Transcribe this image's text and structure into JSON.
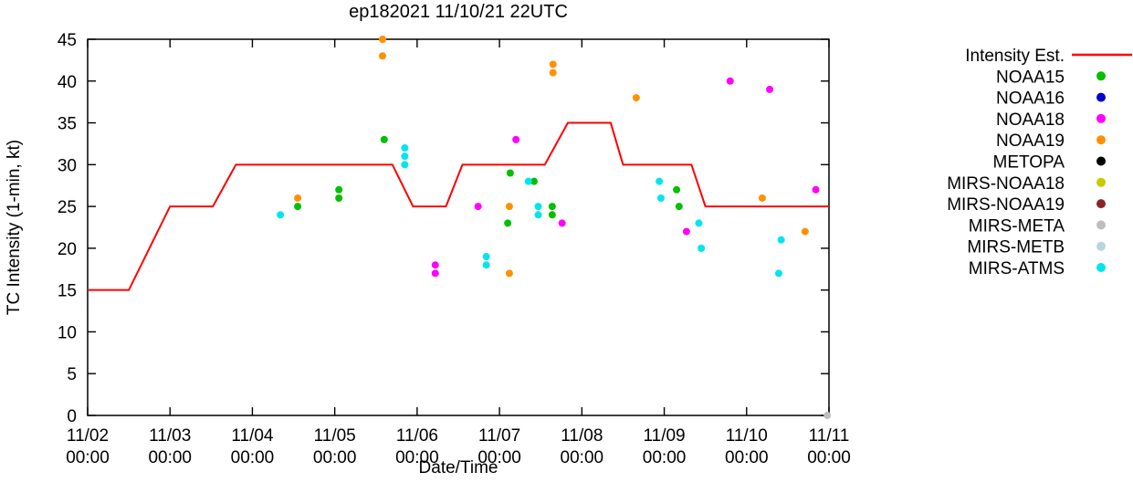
{
  "chart_data": {
    "type": "line+scatter",
    "title": "ep182021 11/10/21 22UTC",
    "xlabel": "Date/Time",
    "ylabel": "TC Intensity (1-min, kt)",
    "ylim": [
      0,
      45
    ],
    "yticks": [
      0,
      5,
      10,
      15,
      20,
      25,
      30,
      35,
      40,
      45
    ],
    "x_range": [
      0,
      9
    ],
    "x_unit_note": "days since 11/02 00:00",
    "xticks": [
      {
        "t": 0,
        "line1": "11/02",
        "line2": "00:00"
      },
      {
        "t": 1,
        "line1": "11/03",
        "line2": "00:00"
      },
      {
        "t": 2,
        "line1": "11/04",
        "line2": "00:00"
      },
      {
        "t": 3,
        "line1": "11/05",
        "line2": "00:00"
      },
      {
        "t": 4,
        "line1": "11/06",
        "line2": "00:00"
      },
      {
        "t": 5,
        "line1": "11/07",
        "line2": "00:00"
      },
      {
        "t": 6,
        "line1": "11/08",
        "line2": "00:00"
      },
      {
        "t": 7,
        "line1": "11/09",
        "line2": "00:00"
      },
      {
        "t": 8,
        "line1": "11/10",
        "line2": "00:00"
      },
      {
        "t": 9,
        "line1": "11/11",
        "line2": "00:00"
      }
    ],
    "legend_position": "right",
    "grid": false,
    "intensity_line": {
      "name": "Intensity Est.",
      "color": "#ff0000",
      "points": [
        [
          0,
          15
        ],
        [
          0.5,
          15
        ],
        [
          1.0,
          25
        ],
        [
          1.52,
          25
        ],
        [
          1.8,
          30
        ],
        [
          3.7,
          30
        ],
        [
          3.95,
          25
        ],
        [
          4.35,
          25
        ],
        [
          4.55,
          30
        ],
        [
          5.55,
          30
        ],
        [
          5.83,
          35
        ],
        [
          6.35,
          35
        ],
        [
          6.5,
          30
        ],
        [
          7.33,
          30
        ],
        [
          7.5,
          25
        ],
        [
          9.0,
          25
        ]
      ]
    },
    "series": [
      {
        "name": "NOAA15",
        "color": "#00c000",
        "points": [
          [
            2.55,
            25
          ],
          [
            3.05,
            27
          ],
          [
            3.05,
            26
          ],
          [
            3.6,
            33
          ],
          [
            5.1,
            23
          ],
          [
            5.13,
            29
          ],
          [
            5.42,
            28
          ],
          [
            5.64,
            25
          ],
          [
            5.64,
            24
          ],
          [
            7.15,
            27
          ],
          [
            7.18,
            25
          ]
        ]
      },
      {
        "name": "NOAA16",
        "color": "#0000cd",
        "points": []
      },
      {
        "name": "NOAA18",
        "color": "#ff00ff",
        "points": [
          [
            4.22,
            18
          ],
          [
            4.22,
            17
          ],
          [
            4.74,
            25
          ],
          [
            5.2,
            33
          ],
          [
            5.76,
            23
          ],
          [
            7.27,
            22
          ],
          [
            7.8,
            40
          ],
          [
            8.28,
            39
          ],
          [
            8.84,
            27
          ]
        ]
      },
      {
        "name": "NOAA19",
        "color": "#ff9000",
        "points": [
          [
            2.55,
            26
          ],
          [
            3.58,
            45
          ],
          [
            3.58,
            43
          ],
          [
            5.12,
            25
          ],
          [
            5.12,
            17
          ],
          [
            5.65,
            42
          ],
          [
            5.65,
            41
          ],
          [
            6.66,
            38
          ],
          [
            8.19,
            26
          ],
          [
            8.71,
            22
          ]
        ]
      },
      {
        "name": "METOPA",
        "color": "#000000",
        "points": []
      },
      {
        "name": "MIRS-NOAA18",
        "color": "#c9c900",
        "points": []
      },
      {
        "name": "MIRS-NOAA19",
        "color": "#8b2323",
        "points": []
      },
      {
        "name": "MIRS-META",
        "color": "#bebebe",
        "points": [
          [
            8.98,
            0
          ]
        ]
      },
      {
        "name": "MIRS-METB",
        "color": "#b4d7de",
        "points": []
      },
      {
        "name": "MIRS-ATMS",
        "color": "#00e5ee",
        "points": [
          [
            2.34,
            24
          ],
          [
            3.85,
            32
          ],
          [
            3.85,
            31
          ],
          [
            3.85,
            30
          ],
          [
            4.84,
            19
          ],
          [
            4.84,
            18
          ],
          [
            5.35,
            28
          ],
          [
            5.47,
            25
          ],
          [
            5.47,
            24
          ],
          [
            6.94,
            28
          ],
          [
            6.96,
            26
          ],
          [
            7.42,
            23
          ],
          [
            7.45,
            20
          ],
          [
            8.39,
            17
          ],
          [
            8.42,
            21
          ]
        ]
      }
    ]
  }
}
